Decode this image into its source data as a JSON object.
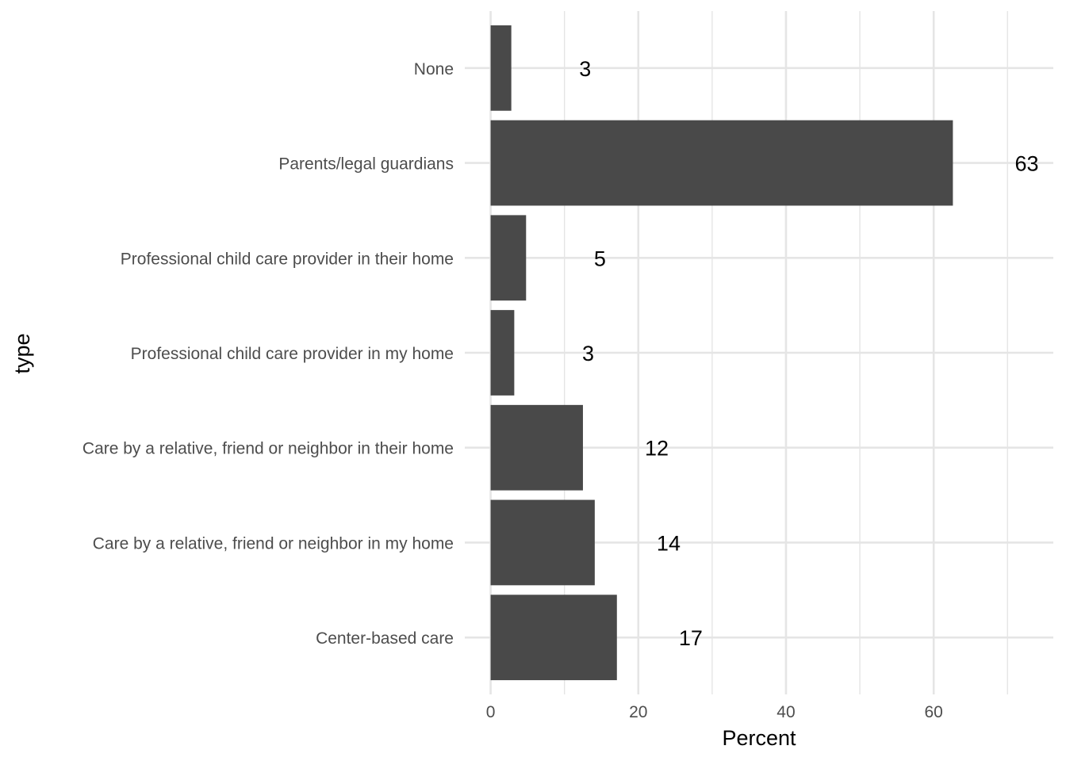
{
  "chart_data": {
    "type": "bar",
    "orientation": "horizontal",
    "categories": [
      "Center-based care",
      "Care by a relative, friend or neighbor in my home",
      "Care by a relative, friend or neighbor in their home",
      "Professional child care provider in my home",
      "Professional child care provider in their home",
      "Parents/legal guardians",
      "None"
    ],
    "values": [
      17.1,
      14.1,
      12.5,
      3.2,
      4.8,
      62.6,
      2.8
    ],
    "data_labels": [
      "17",
      "14",
      "12",
      "3",
      "5",
      "63",
      "3"
    ],
    "xlabel": "Percent",
    "ylabel": "type",
    "xlim": [
      -3.5,
      76.2
    ],
    "xticks": [
      0,
      20,
      40,
      60
    ],
    "xtick_labels": [
      "0",
      "20",
      "40",
      "60"
    ],
    "grid": true,
    "colors": {
      "bar": "#494949",
      "grid_major": "#e5e5e5",
      "grid_minor": "#f0f0f0"
    }
  }
}
